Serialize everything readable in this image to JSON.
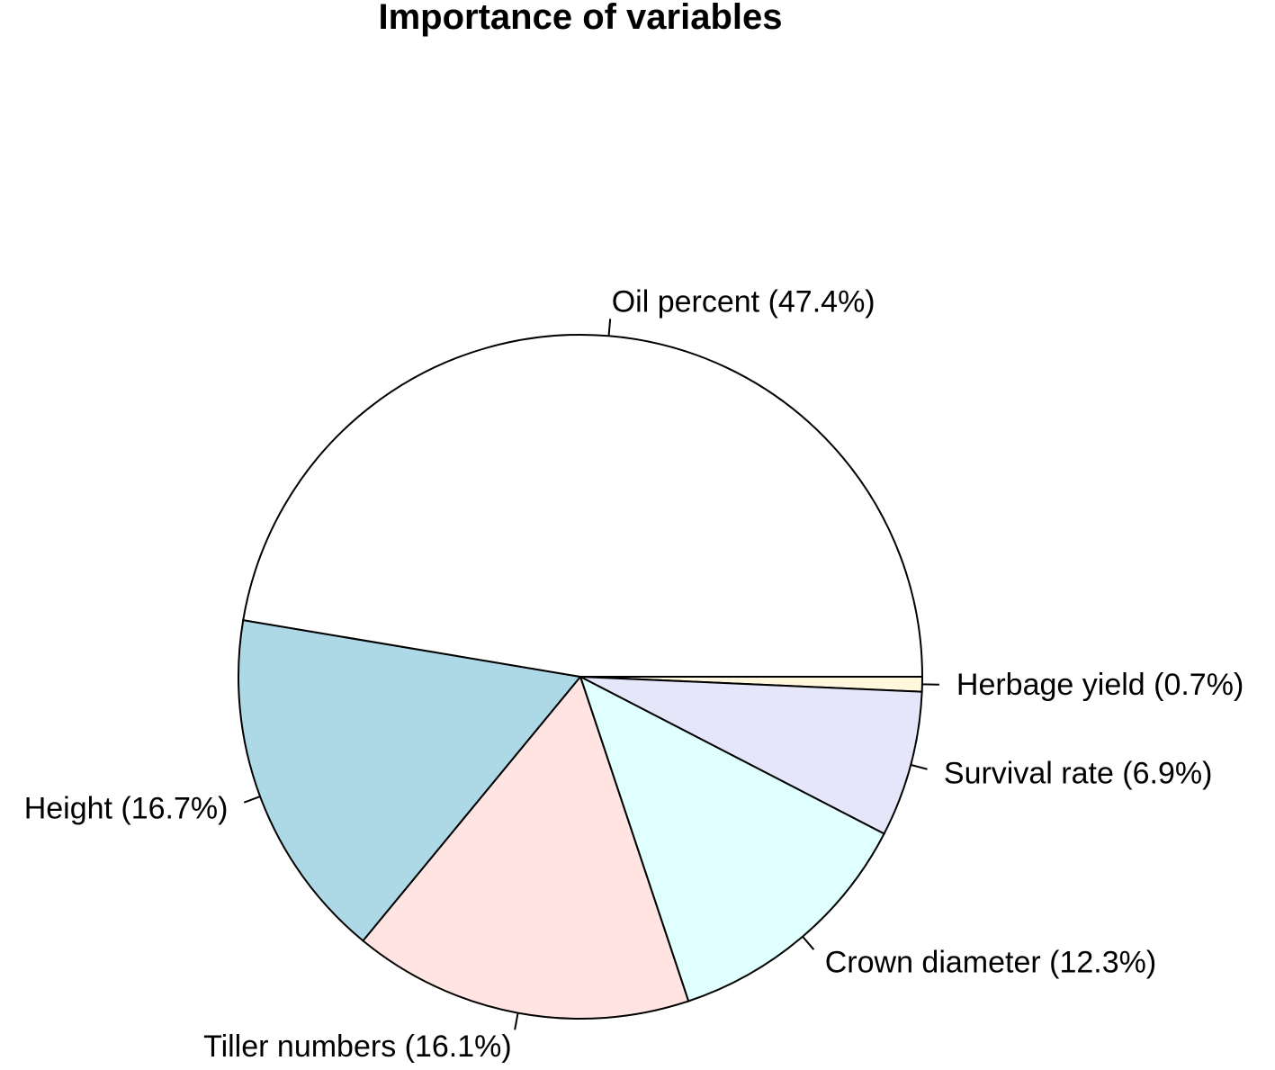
{
  "chart_data": {
    "type": "pie",
    "title": "Importance of variables",
    "direction": "clockwise",
    "start_angle_deg": 0,
    "slices": [
      {
        "label": "Herbage yield (0.7%)",
        "value": 0.7,
        "color": "#FFF8DC"
      },
      {
        "label": "Survival rate (6.9%)",
        "value": 6.9,
        "color": "#E6E6FA"
      },
      {
        "label": "Crown diameter (12.3%)",
        "value": 12.3,
        "color": "#E0FFFF"
      },
      {
        "label": "Tiller numbers (16.1%)",
        "value": 16.1,
        "color": "#FFE4E1"
      },
      {
        "label": "Height (16.7%)",
        "value": 16.7,
        "color": "#ADD8E6"
      },
      {
        "label": "Oil percent (47.4%)",
        "value": 47.4,
        "color": "#FFFFFF"
      }
    ]
  }
}
